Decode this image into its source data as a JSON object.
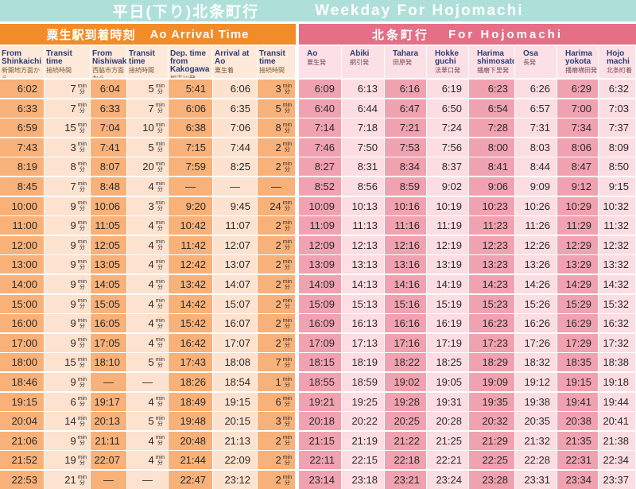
{
  "title": {
    "jp": "平日(下り)北条町行",
    "en": "Weekday For Hojomachi"
  },
  "left_header": {
    "jp": "粟生駅到着時刻",
    "en": "Ao Arrival Time"
  },
  "right_header": {
    "jp": "北条町行",
    "en": "For Hojomachi"
  },
  "columns": [
    {
      "en": "From Shinkaichi",
      "jp": "新開地方面から"
    },
    {
      "en": "Transit time",
      "jp": "接続時間"
    },
    {
      "en": "From Nishiwaki",
      "jp": "西脇市方面から"
    },
    {
      "en": "Transit time",
      "jp": "接続時間"
    },
    {
      "en": "Dep. time from Kakogawa",
      "jp": "加古川発"
    },
    {
      "en": "Arrival at Ao",
      "jp": "粟生着"
    },
    {
      "en": "Transit time",
      "jp": "接続時間"
    },
    {
      "en": "Ao",
      "jp": "粟生発"
    },
    {
      "en": "Abiki",
      "jp": "網引発"
    },
    {
      "en": "Tahara",
      "jp": "田原発"
    },
    {
      "en": "Hokke guchi",
      "jp": "法華口発"
    },
    {
      "en": "Harima shimosato",
      "jp": "播磨下里発"
    },
    {
      "en": "Osa",
      "jp": "長発"
    },
    {
      "en": "Harima yokota",
      "jp": "播磨横田発"
    },
    {
      "en": "Hojo machi",
      "jp": "北条町着"
    }
  ],
  "unit": {
    "top": "min",
    "bottom": "分"
  },
  "rows": [
    [
      "6:02",
      "7",
      "6:04",
      "5",
      "5:41",
      "6:06",
      "3",
      "6:09",
      "6:13",
      "6:16",
      "6:19",
      "6:23",
      "6:26",
      "6:29",
      "6:32"
    ],
    [
      "6:33",
      "7",
      "6:33",
      "7",
      "6:06",
      "6:35",
      "5",
      "6:40",
      "6:44",
      "6:47",
      "6:50",
      "6:54",
      "6:57",
      "7:00",
      "7:03"
    ],
    [
      "6:59",
      "15",
      "7:04",
      "10",
      "6:38",
      "7:06",
      "8",
      "7:14",
      "7:18",
      "7:21",
      "7:24",
      "7:28",
      "7:31",
      "7:34",
      "7:37"
    ],
    [
      "7:43",
      "3",
      "7:41",
      "5",
      "7:15",
      "7:44",
      "2",
      "7:46",
      "7:50",
      "7:53",
      "7:56",
      "8:00",
      "8:03",
      "8:06",
      "8:09"
    ],
    [
      "8:19",
      "8",
      "8:07",
      "20",
      "7:59",
      "8:25",
      "2",
      "8:27",
      "8:31",
      "8:34",
      "8:37",
      "8:41",
      "8:44",
      "8:47",
      "8:50"
    ],
    [
      "8:45",
      "7",
      "8:48",
      "4",
      "—",
      "—",
      "—",
      "8:52",
      "8:56",
      "8:59",
      "9:02",
      "9:06",
      "9:09",
      "9:12",
      "9:15"
    ],
    [
      "10:00",
      "9",
      "10:06",
      "3",
      "9:20",
      "9:45",
      "24",
      "10:09",
      "10:13",
      "10:16",
      "10:19",
      "10:23",
      "10:26",
      "10:29",
      "10:32"
    ],
    [
      "11:00",
      "9",
      "11:05",
      "4",
      "10:42",
      "11:07",
      "2",
      "11:09",
      "11:13",
      "11:16",
      "11:19",
      "11:23",
      "11:26",
      "11:29",
      "11:32"
    ],
    [
      "12:00",
      "9",
      "12:05",
      "4",
      "11:42",
      "12:07",
      "2",
      "12:09",
      "12:13",
      "12:16",
      "12:19",
      "12:23",
      "12:26",
      "12:29",
      "12:32"
    ],
    [
      "13:00",
      "9",
      "13:05",
      "4",
      "12:42",
      "13:07",
      "2",
      "13:09",
      "13:13",
      "13:16",
      "13:19",
      "13:23",
      "13:26",
      "13:29",
      "13:32"
    ],
    [
      "14:00",
      "9",
      "14:05",
      "4",
      "13:42",
      "14:07",
      "2",
      "14:09",
      "14:13",
      "14:16",
      "14:19",
      "14:23",
      "14:26",
      "14:29",
      "14:32"
    ],
    [
      "15:00",
      "9",
      "15:05",
      "4",
      "14:42",
      "15:07",
      "2",
      "15:09",
      "15:13",
      "15:16",
      "15:19",
      "15:23",
      "15:26",
      "15:29",
      "15:32"
    ],
    [
      "16:00",
      "9",
      "16:05",
      "4",
      "15:42",
      "16:07",
      "2",
      "16:09",
      "16:13",
      "16:16",
      "16:19",
      "16:23",
      "16:26",
      "16:29",
      "16:32"
    ],
    [
      "17:00",
      "9",
      "17:05",
      "4",
      "16:42",
      "17:07",
      "2",
      "17:09",
      "17:13",
      "17:16",
      "17:19",
      "17:23",
      "17:26",
      "17:29",
      "17:32"
    ],
    [
      "18:00",
      "15",
      "18:10",
      "5",
      "17:43",
      "18:08",
      "7",
      "18:15",
      "18:19",
      "18:22",
      "18:25",
      "18:29",
      "18:32",
      "18:35",
      "18:38"
    ],
    [
      "18:46",
      "9",
      "—",
      "—",
      "18:26",
      "18:54",
      "1",
      "18:55",
      "18:59",
      "19:02",
      "19:05",
      "19:09",
      "19:12",
      "19:15",
      "19:18"
    ],
    [
      "19:15",
      "6",
      "19:17",
      "4",
      "18:49",
      "19:15",
      "6",
      "19:21",
      "19:25",
      "19:28",
      "19:31",
      "19:35",
      "19:38",
      "19:41",
      "19:44"
    ],
    [
      "20:04",
      "14",
      "20:13",
      "5",
      "19:48",
      "20:15",
      "3",
      "20:18",
      "20:22",
      "20:25",
      "20:28",
      "20:32",
      "20:35",
      "20:38",
      "20:41"
    ],
    [
      "21:06",
      "9",
      "21:11",
      "4",
      "20:48",
      "21:13",
      "2",
      "21:15",
      "21:19",
      "21:22",
      "21:25",
      "21:29",
      "21:32",
      "21:35",
      "21:38"
    ],
    [
      "21:52",
      "19",
      "22:07",
      "4",
      "21:44",
      "22:09",
      "2",
      "22:11",
      "22:15",
      "22:18",
      "22:21",
      "22:25",
      "22:28",
      "22:31",
      "22:34"
    ],
    [
      "22:53",
      "21",
      "—",
      "—",
      "22:47",
      "23:12",
      "2",
      "23:14",
      "23:18",
      "23:21",
      "23:24",
      "23:28",
      "23:31",
      "23:34",
      "23:37"
    ]
  ]
}
